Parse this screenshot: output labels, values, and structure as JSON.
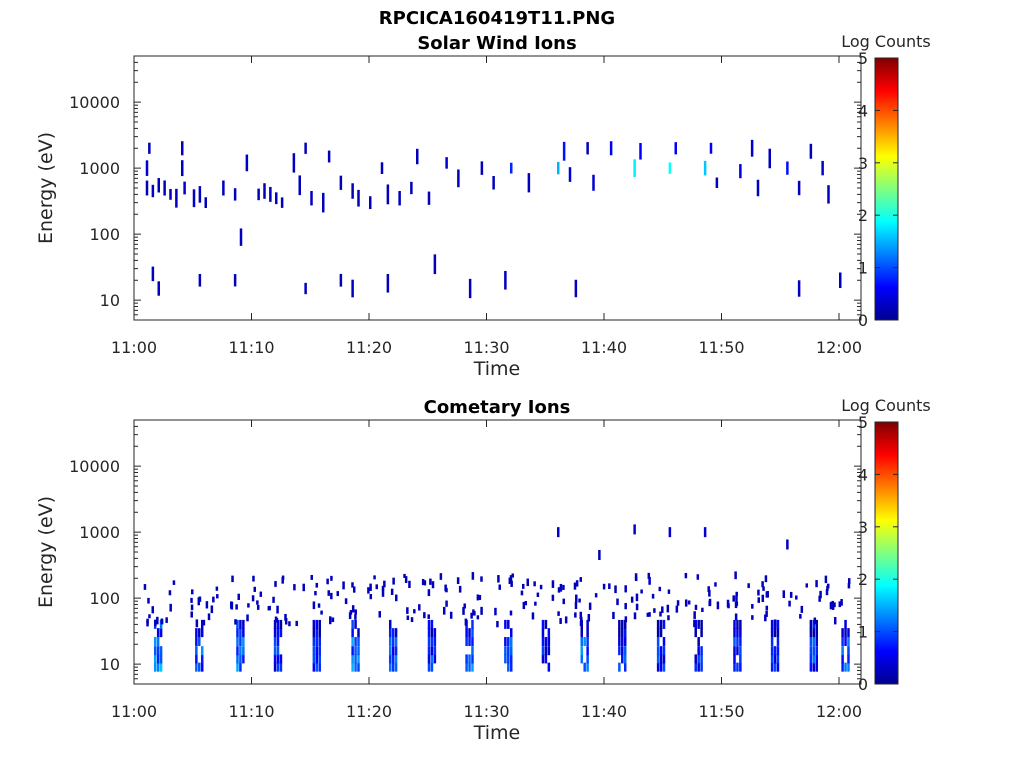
{
  "figure_title": "RPCICA160419T11.PNG",
  "chart_data": [
    {
      "type": "heatmap",
      "title": "Solar Wind Ions",
      "xlabel": "Time",
      "ylabel": "Energy (eV)",
      "x_ticks": [
        "11:00",
        "11:10",
        "11:20",
        "11:30",
        "11:40",
        "11:50",
        "12:00"
      ],
      "y_ticks": [
        "10",
        "100",
        "1000",
        "10000"
      ],
      "y_scale": "log",
      "y_range": [
        5,
        50000
      ],
      "x_range_minutes": [
        0,
        61.5
      ],
      "colorbar": {
        "label": "Log Counts",
        "ticks": [
          "0",
          "1",
          "2",
          "3",
          "4",
          "5"
        ],
        "range": [
          0,
          5
        ],
        "colormap": "jet"
      },
      "cells": [
        [
          1.0,
          500,
          0.3
        ],
        [
          1.0,
          1000,
          0.4
        ],
        [
          1.2,
          2000,
          0.3
        ],
        [
          1.5,
          450,
          0.3
        ],
        [
          2.0,
          550,
          0.3
        ],
        [
          2.5,
          500,
          0.3
        ],
        [
          3.0,
          400,
          0.3
        ],
        [
          3.5,
          350,
          0.3
        ],
        [
          4.0,
          1000,
          0.3
        ],
        [
          4.0,
          2000,
          0.3
        ],
        [
          4.2,
          500,
          0.4
        ],
        [
          5.0,
          350,
          0.3
        ],
        [
          5.5,
          400,
          0.3
        ],
        [
          6.0,
          300,
          0.3
        ],
        [
          7.5,
          500,
          0.3
        ],
        [
          8.5,
          400,
          0.3
        ],
        [
          9.5,
          1200,
          0.3
        ],
        [
          10.5,
          400,
          0.3
        ],
        [
          11.0,
          450,
          0.3
        ],
        [
          11.5,
          400,
          0.3
        ],
        [
          12.0,
          350,
          0.3
        ],
        [
          12.5,
          300,
          0.3
        ],
        [
          13.5,
          1200,
          0.3
        ],
        [
          14.0,
          550,
          0.3
        ],
        [
          14.5,
          2000,
          0.3
        ],
        [
          15.0,
          350,
          0.3
        ],
        [
          16.0,
          300,
          0.3
        ],
        [
          16.5,
          1500,
          0.3
        ],
        [
          17.5,
          600,
          0.3
        ],
        [
          18.5,
          450,
          0.3
        ],
        [
          19.0,
          350,
          0.3
        ],
        [
          20.0,
          300,
          0.3
        ],
        [
          21.0,
          1000,
          0.3
        ],
        [
          21.5,
          400,
          0.3
        ],
        [
          22.5,
          350,
          0.3
        ],
        [
          23.5,
          500,
          0.3
        ],
        [
          24.0,
          1500,
          0.3
        ],
        [
          25.0,
          350,
          0.3
        ],
        [
          26.5,
          1200,
          0.4
        ],
        [
          27.5,
          700,
          0.3
        ],
        [
          29.5,
          1000,
          0.3
        ],
        [
          30.5,
          600,
          0.3
        ],
        [
          32.0,
          1000,
          0.8
        ],
        [
          33.5,
          600,
          0.3
        ],
        [
          36.0,
          1000,
          1.5
        ],
        [
          36.5,
          1800,
          0.7
        ],
        [
          37.0,
          800,
          0.4
        ],
        [
          38.5,
          2000,
          0.3
        ],
        [
          39.0,
          600,
          0.4
        ],
        [
          40.5,
          2000,
          0.6
        ],
        [
          42.5,
          1000,
          1.8
        ],
        [
          43.0,
          1800,
          0.6
        ],
        [
          45.5,
          1000,
          1.9
        ],
        [
          46.0,
          2000,
          0.6
        ],
        [
          48.5,
          1000,
          1.6
        ],
        [
          49.0,
          2000,
          0.6
        ],
        [
          49.5,
          600,
          0.3
        ],
        [
          51.5,
          900,
          0.5
        ],
        [
          52.5,
          2000,
          0.4
        ],
        [
          53.0,
          500,
          0.3
        ],
        [
          54.0,
          1400,
          0.3
        ],
        [
          55.5,
          1000,
          0.7
        ],
        [
          56.5,
          500,
          0.3
        ],
        [
          57.5,
          1800,
          0.3
        ],
        [
          58.5,
          1000,
          0.4
        ],
        [
          59.0,
          400,
          0.3
        ],
        [
          1.5,
          25,
          0.3
        ],
        [
          2.0,
          15,
          0.3
        ],
        [
          5.5,
          20,
          0.3
        ],
        [
          8.5,
          20,
          0.3
        ],
        [
          9.0,
          90,
          0.3
        ],
        [
          14.5,
          15,
          0.3
        ],
        [
          17.5,
          20,
          0.3
        ],
        [
          18.5,
          15,
          0.3
        ],
        [
          21.5,
          18,
          0.3
        ],
        [
          25.5,
          35,
          0.3
        ],
        [
          28.5,
          15,
          0.3
        ],
        [
          31.5,
          20,
          0.3
        ],
        [
          37.5,
          15,
          0.3
        ],
        [
          56.5,
          15,
          0.3
        ],
        [
          60.0,
          20,
          0.3
        ]
      ]
    },
    {
      "type": "heatmap",
      "title": "Cometary Ions",
      "xlabel": "Time",
      "ylabel": "Energy (eV)",
      "x_ticks": [
        "11:00",
        "11:10",
        "11:20",
        "11:30",
        "11:40",
        "11:50",
        "12:00"
      ],
      "y_ticks": [
        "10",
        "100",
        "1000",
        "10000"
      ],
      "y_scale": "log",
      "y_range": [
        5,
        50000
      ],
      "x_range_minutes": [
        0,
        61.5
      ],
      "colorbar": {
        "label": "Log Counts",
        "ticks": [
          "0",
          "1",
          "2",
          "3",
          "4",
          "5"
        ],
        "range": [
          0,
          5
        ],
        "colormap": "jet"
      },
      "burst_times": [
        2.0,
        5.5,
        9.0,
        12.2,
        15.5,
        18.8,
        22.0,
        25.3,
        28.5,
        31.8,
        35.0,
        38.3,
        41.5,
        44.8,
        48.0,
        51.3,
        54.5,
        57.8,
        60.5
      ],
      "burst_levels": [
        1.6,
        1.4,
        1.5,
        1.1,
        1.2,
        1.5,
        1.3,
        1.2,
        1.5,
        1.3,
        1.1,
        1.4,
        1.2,
        1.1,
        1.0,
        1.1,
        1.2,
        1.2,
        1.3
      ],
      "high_energy_cells": [
        [
          36.0,
          1000,
          0.4
        ],
        [
          39.5,
          450,
          0.3
        ],
        [
          42.5,
          1100,
          0.4
        ],
        [
          45.5,
          1000,
          0.4
        ],
        [
          48.5,
          1000,
          0.4
        ],
        [
          55.5,
          650,
          0.3
        ]
      ]
    }
  ]
}
